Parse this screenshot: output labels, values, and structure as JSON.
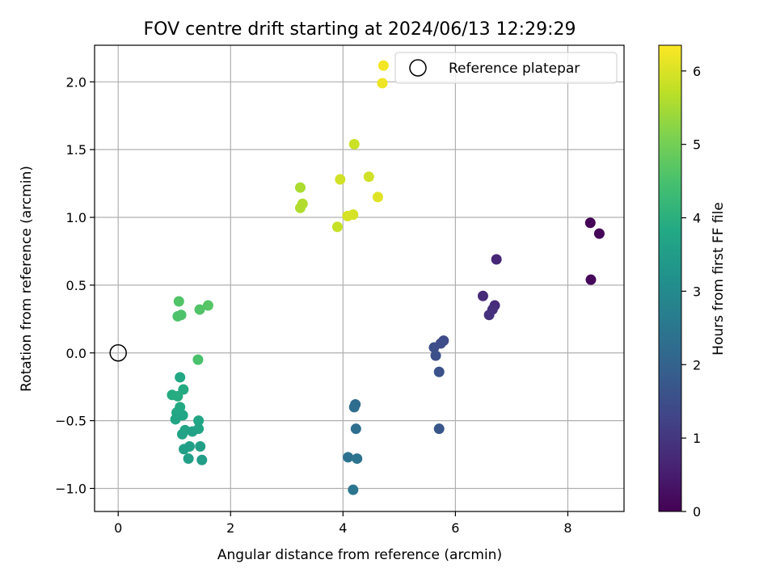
{
  "chart_data": {
    "type": "scatter",
    "title": "FOV centre drift starting at 2024/06/13 12:29:29",
    "xlabel": "Angular distance from reference (arcmin)",
    "ylabel": "Rotation from reference (arcmin)",
    "xlim": [
      -0.42,
      9.0
    ],
    "ylim": [
      -1.17,
      2.27
    ],
    "xticks": [
      0,
      2,
      4,
      6,
      8
    ],
    "xtick_labels": [
      "0",
      "2",
      "4",
      "6",
      "8"
    ],
    "yticks": [
      -1.0,
      -0.5,
      0.0,
      0.5,
      1.0,
      1.5,
      2.0
    ],
    "ytick_labels": [
      "−1.0",
      "−0.5",
      "0.0",
      "0.5",
      "1.0",
      "1.5",
      "2.0"
    ],
    "grid": true,
    "colormap": "viridis",
    "colorbar": {
      "label": "Hours from first FF file",
      "range": [
        0,
        6.35
      ],
      "ticks": [
        0,
        1,
        2,
        3,
        4,
        5,
        6
      ],
      "tick_labels": [
        "0",
        "1",
        "2",
        "3",
        "4",
        "5",
        "6"
      ]
    },
    "reference": {
      "name": "Reference platepar",
      "x": 0,
      "y": 0
    },
    "legend": {
      "placement": "top-right",
      "entries": [
        "Reference platepar"
      ]
    },
    "points": [
      {
        "x": 8.4,
        "y": 0.96,
        "c": 0.03
      },
      {
        "x": 8.56,
        "y": 0.88,
        "c": 0.08
      },
      {
        "x": 8.41,
        "y": 0.54,
        "c": 0.12
      },
      {
        "x": 6.73,
        "y": 0.69,
        "c": 0.7
      },
      {
        "x": 6.49,
        "y": 0.42,
        "c": 0.75
      },
      {
        "x": 6.7,
        "y": 0.35,
        "c": 0.8
      },
      {
        "x": 6.66,
        "y": 0.32,
        "c": 0.85
      },
      {
        "x": 6.6,
        "y": 0.28,
        "c": 0.9
      },
      {
        "x": 5.79,
        "y": 0.09,
        "c": 1.4
      },
      {
        "x": 5.74,
        "y": 0.07,
        "c": 1.45
      },
      {
        "x": 5.62,
        "y": 0.04,
        "c": 1.5
      },
      {
        "x": 5.65,
        "y": -0.02,
        "c": 1.55
      },
      {
        "x": 5.71,
        "y": -0.14,
        "c": 1.6
      },
      {
        "x": 5.71,
        "y": -0.56,
        "c": 1.7
      },
      {
        "x": 4.22,
        "y": -0.38,
        "c": 2.2
      },
      {
        "x": 4.2,
        "y": -0.4,
        "c": 2.25
      },
      {
        "x": 4.23,
        "y": -0.56,
        "c": 2.3
      },
      {
        "x": 4.09,
        "y": -0.77,
        "c": 2.4
      },
      {
        "x": 4.25,
        "y": -0.78,
        "c": 2.45
      },
      {
        "x": 4.18,
        "y": -1.01,
        "c": 2.5
      },
      {
        "x": 1.1,
        "y": -0.18,
        "c": 3.8
      },
      {
        "x": 1.16,
        "y": -0.27,
        "c": 3.85
      },
      {
        "x": 0.96,
        "y": -0.31,
        "c": 3.9
      },
      {
        "x": 1.06,
        "y": -0.32,
        "c": 3.9
      },
      {
        "x": 1.1,
        "y": -0.4,
        "c": 3.85
      },
      {
        "x": 1.04,
        "y": -0.44,
        "c": 3.8
      },
      {
        "x": 1.15,
        "y": -0.46,
        "c": 3.75
      },
      {
        "x": 1.02,
        "y": -0.49,
        "c": 3.7
      },
      {
        "x": 1.43,
        "y": -0.5,
        "c": 3.75
      },
      {
        "x": 1.43,
        "y": -0.56,
        "c": 3.7
      },
      {
        "x": 1.19,
        "y": -0.57,
        "c": 3.7
      },
      {
        "x": 1.32,
        "y": -0.58,
        "c": 3.65
      },
      {
        "x": 1.14,
        "y": -0.6,
        "c": 3.65
      },
      {
        "x": 1.46,
        "y": -0.69,
        "c": 3.6
      },
      {
        "x": 1.27,
        "y": -0.69,
        "c": 3.6
      },
      {
        "x": 1.17,
        "y": -0.71,
        "c": 3.55
      },
      {
        "x": 1.25,
        "y": -0.78,
        "c": 3.55
      },
      {
        "x": 1.49,
        "y": -0.79,
        "c": 3.5
      },
      {
        "x": 1.08,
        "y": 0.38,
        "c": 4.6
      },
      {
        "x": 1.6,
        "y": 0.35,
        "c": 4.65
      },
      {
        "x": 1.45,
        "y": 0.32,
        "c": 4.6
      },
      {
        "x": 1.12,
        "y": 0.28,
        "c": 4.55
      },
      {
        "x": 1.06,
        "y": 0.27,
        "c": 4.55
      },
      {
        "x": 1.42,
        "y": -0.05,
        "c": 4.5
      },
      {
        "x": 3.24,
        "y": 1.22,
        "c": 5.55
      },
      {
        "x": 3.28,
        "y": 1.1,
        "c": 5.6
      },
      {
        "x": 3.24,
        "y": 1.07,
        "c": 5.6
      },
      {
        "x": 4.2,
        "y": 1.54,
        "c": 5.85
      },
      {
        "x": 4.46,
        "y": 1.3,
        "c": 5.9
      },
      {
        "x": 3.95,
        "y": 1.28,
        "c": 5.9
      },
      {
        "x": 4.62,
        "y": 1.15,
        "c": 6.05
      },
      {
        "x": 4.18,
        "y": 1.02,
        "c": 5.95
      },
      {
        "x": 4.08,
        "y": 1.01,
        "c": 5.95
      },
      {
        "x": 3.9,
        "y": 0.93,
        "c": 5.8
      },
      {
        "x": 4.72,
        "y": 2.12,
        "c": 6.25
      },
      {
        "x": 4.7,
        "y": 1.99,
        "c": 6.2
      }
    ]
  }
}
